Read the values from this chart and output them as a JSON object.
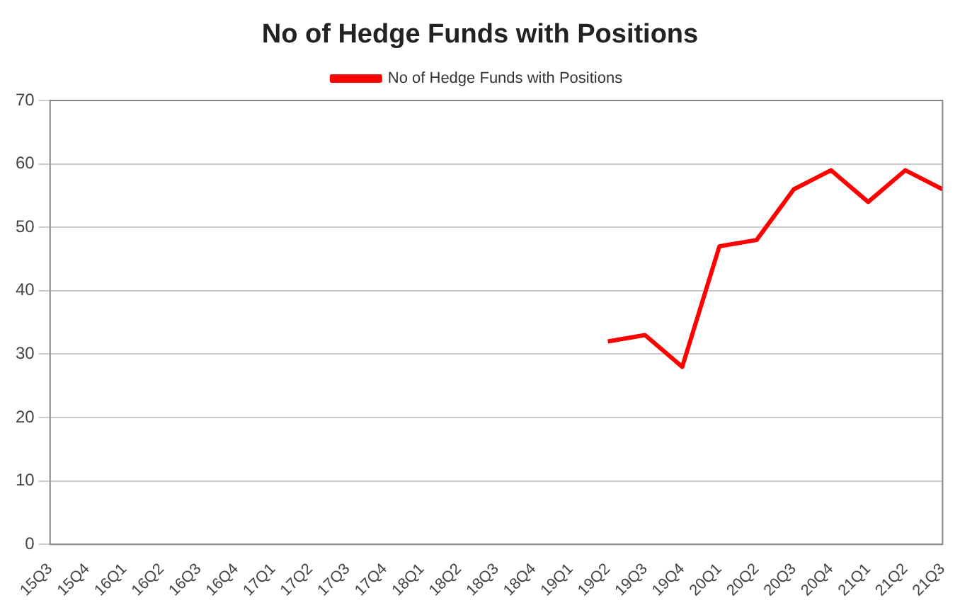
{
  "chart_data": {
    "type": "line",
    "title": "No of Hedge Funds with Positions",
    "categories": [
      "15Q3",
      "15Q4",
      "16Q1",
      "16Q2",
      "16Q3",
      "16Q4",
      "17Q1",
      "17Q2",
      "17Q3",
      "17Q4",
      "18Q1",
      "18Q2",
      "18Q3",
      "18Q4",
      "19Q1",
      "19Q2",
      "19Q3",
      "19Q4",
      "20Q1",
      "20Q2",
      "20Q3",
      "20Q4",
      "21Q1",
      "21Q2",
      "21Q3"
    ],
    "series": [
      {
        "name": "No of Hedge Funds with Positions",
        "color": "#ff0000",
        "values": [
          null,
          null,
          null,
          null,
          null,
          null,
          null,
          null,
          null,
          null,
          null,
          null,
          null,
          null,
          null,
          32,
          33,
          28,
          47,
          48,
          56,
          59,
          54,
          59,
          56
        ]
      }
    ],
    "ylim": [
      0,
      70
    ],
    "yticks": [
      0,
      10,
      20,
      30,
      40,
      50,
      60,
      70
    ],
    "grid": "y",
    "legend": "top",
    "marker": "none",
    "line_style": "solid"
  }
}
